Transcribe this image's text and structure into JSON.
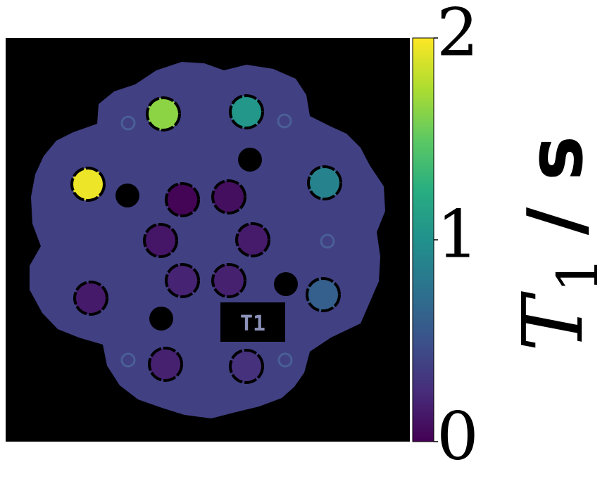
{
  "chart_data": {
    "type": "heatmap",
    "title": "",
    "colormap": "viridis",
    "colorbar": {
      "label_symbol": "T",
      "label_subscript": "1",
      "label_unit": "/ s",
      "range": [
        0,
        2
      ],
      "ticks": [
        0,
        1,
        2
      ],
      "tick_labels": [
        "0",
        "1",
        "2"
      ]
    },
    "phantom": {
      "inset_label": "T1",
      "background_value": 0.38,
      "vials": [
        {
          "name": "vial-1",
          "value": 1.65
        },
        {
          "name": "vial-2",
          "value": 1.05
        },
        {
          "name": "vial-3",
          "value": 1.95
        },
        {
          "name": "vial-4",
          "value": 0.88
        },
        {
          "name": "vial-5",
          "value": 0.02
        },
        {
          "name": "vial-6",
          "value": 0.08
        },
        {
          "name": "vial-7",
          "value": 0.12
        },
        {
          "name": "vial-8",
          "value": 0.15
        },
        {
          "name": "vial-9",
          "value": 0.2
        },
        {
          "name": "vial-10",
          "value": 0.18
        },
        {
          "name": "vial-11",
          "value": 0.14
        },
        {
          "name": "vial-12",
          "value": 0.6
        },
        {
          "name": "vial-13",
          "value": 0.18
        },
        {
          "name": "vial-14",
          "value": 0.28
        }
      ]
    }
  }
}
